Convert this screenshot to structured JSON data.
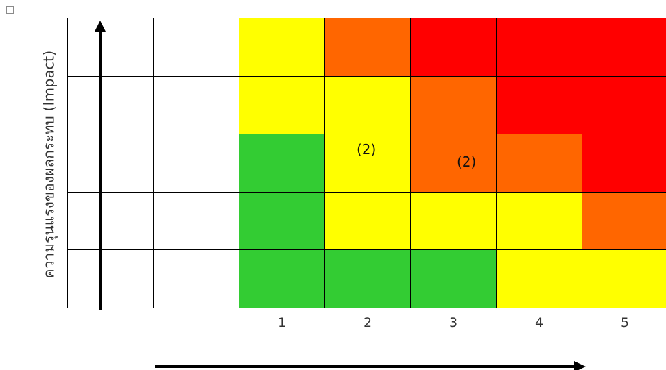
{
  "y_axis": {
    "label": "ความรุนแรงของผลกระทบ (Impact)"
  },
  "x_axis": {
    "ticks": [
      "1",
      "2",
      "3",
      "4",
      "5"
    ]
  },
  "icons": {
    "move_handle": "move-handle-icon"
  },
  "colors": {
    "none": "#ffffff",
    "green": "#33cc33",
    "yellow": "#ffff00",
    "orange": "#ff6600",
    "red": "#ff0000"
  },
  "matrix": {
    "rows": [
      [
        "none",
        "none",
        "yellow",
        "orange",
        "red",
        "red",
        "red"
      ],
      [
        "none",
        "none",
        "yellow",
        "yellow",
        "orange",
        "red",
        "red"
      ],
      [
        "none",
        "none",
        "green",
        "yellow",
        "orange",
        "orange",
        "red"
      ],
      [
        "none",
        "none",
        "green",
        "yellow",
        "yellow",
        "yellow",
        "orange"
      ],
      [
        "none",
        "none",
        "green",
        "green",
        "green",
        "yellow",
        "yellow"
      ]
    ],
    "cell_labels": [
      {
        "row": 2,
        "col": 3,
        "text": "(2)"
      },
      {
        "row": 2,
        "col": 4,
        "text": "(2)"
      }
    ]
  }
}
